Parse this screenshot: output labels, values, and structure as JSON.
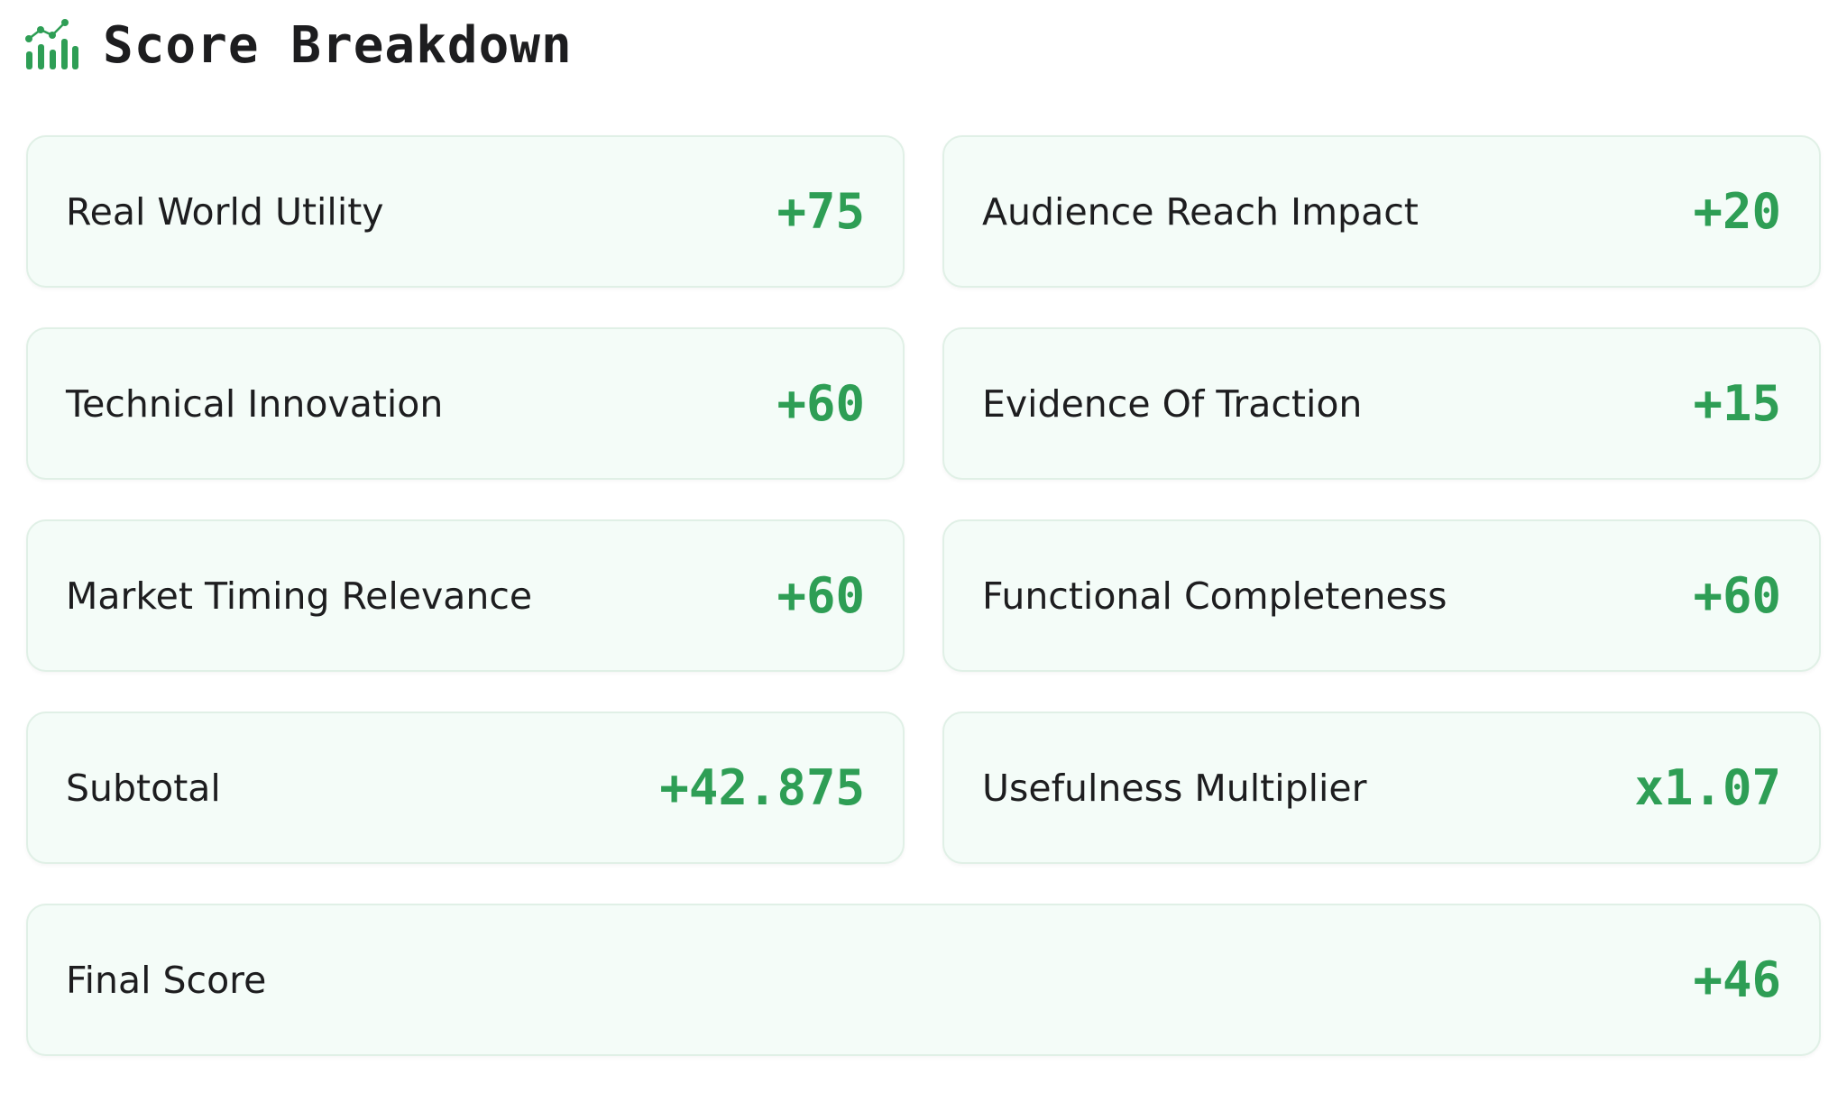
{
  "header": {
    "title": "Score Breakdown"
  },
  "items": [
    {
      "label": "Real World Utility",
      "value": "+75"
    },
    {
      "label": "Audience Reach Impact",
      "value": "+20"
    },
    {
      "label": "Technical Innovation",
      "value": "+60"
    },
    {
      "label": "Evidence Of Traction",
      "value": "+15"
    },
    {
      "label": "Market Timing Relevance",
      "value": "+60"
    },
    {
      "label": "Functional Completeness",
      "value": "+60"
    },
    {
      "label": "Subtotal",
      "value": "+42.875"
    },
    {
      "label": "Usefulness Multiplier",
      "value": "x1.07"
    }
  ],
  "final": {
    "label": "Final Score",
    "value": "+46"
  }
}
